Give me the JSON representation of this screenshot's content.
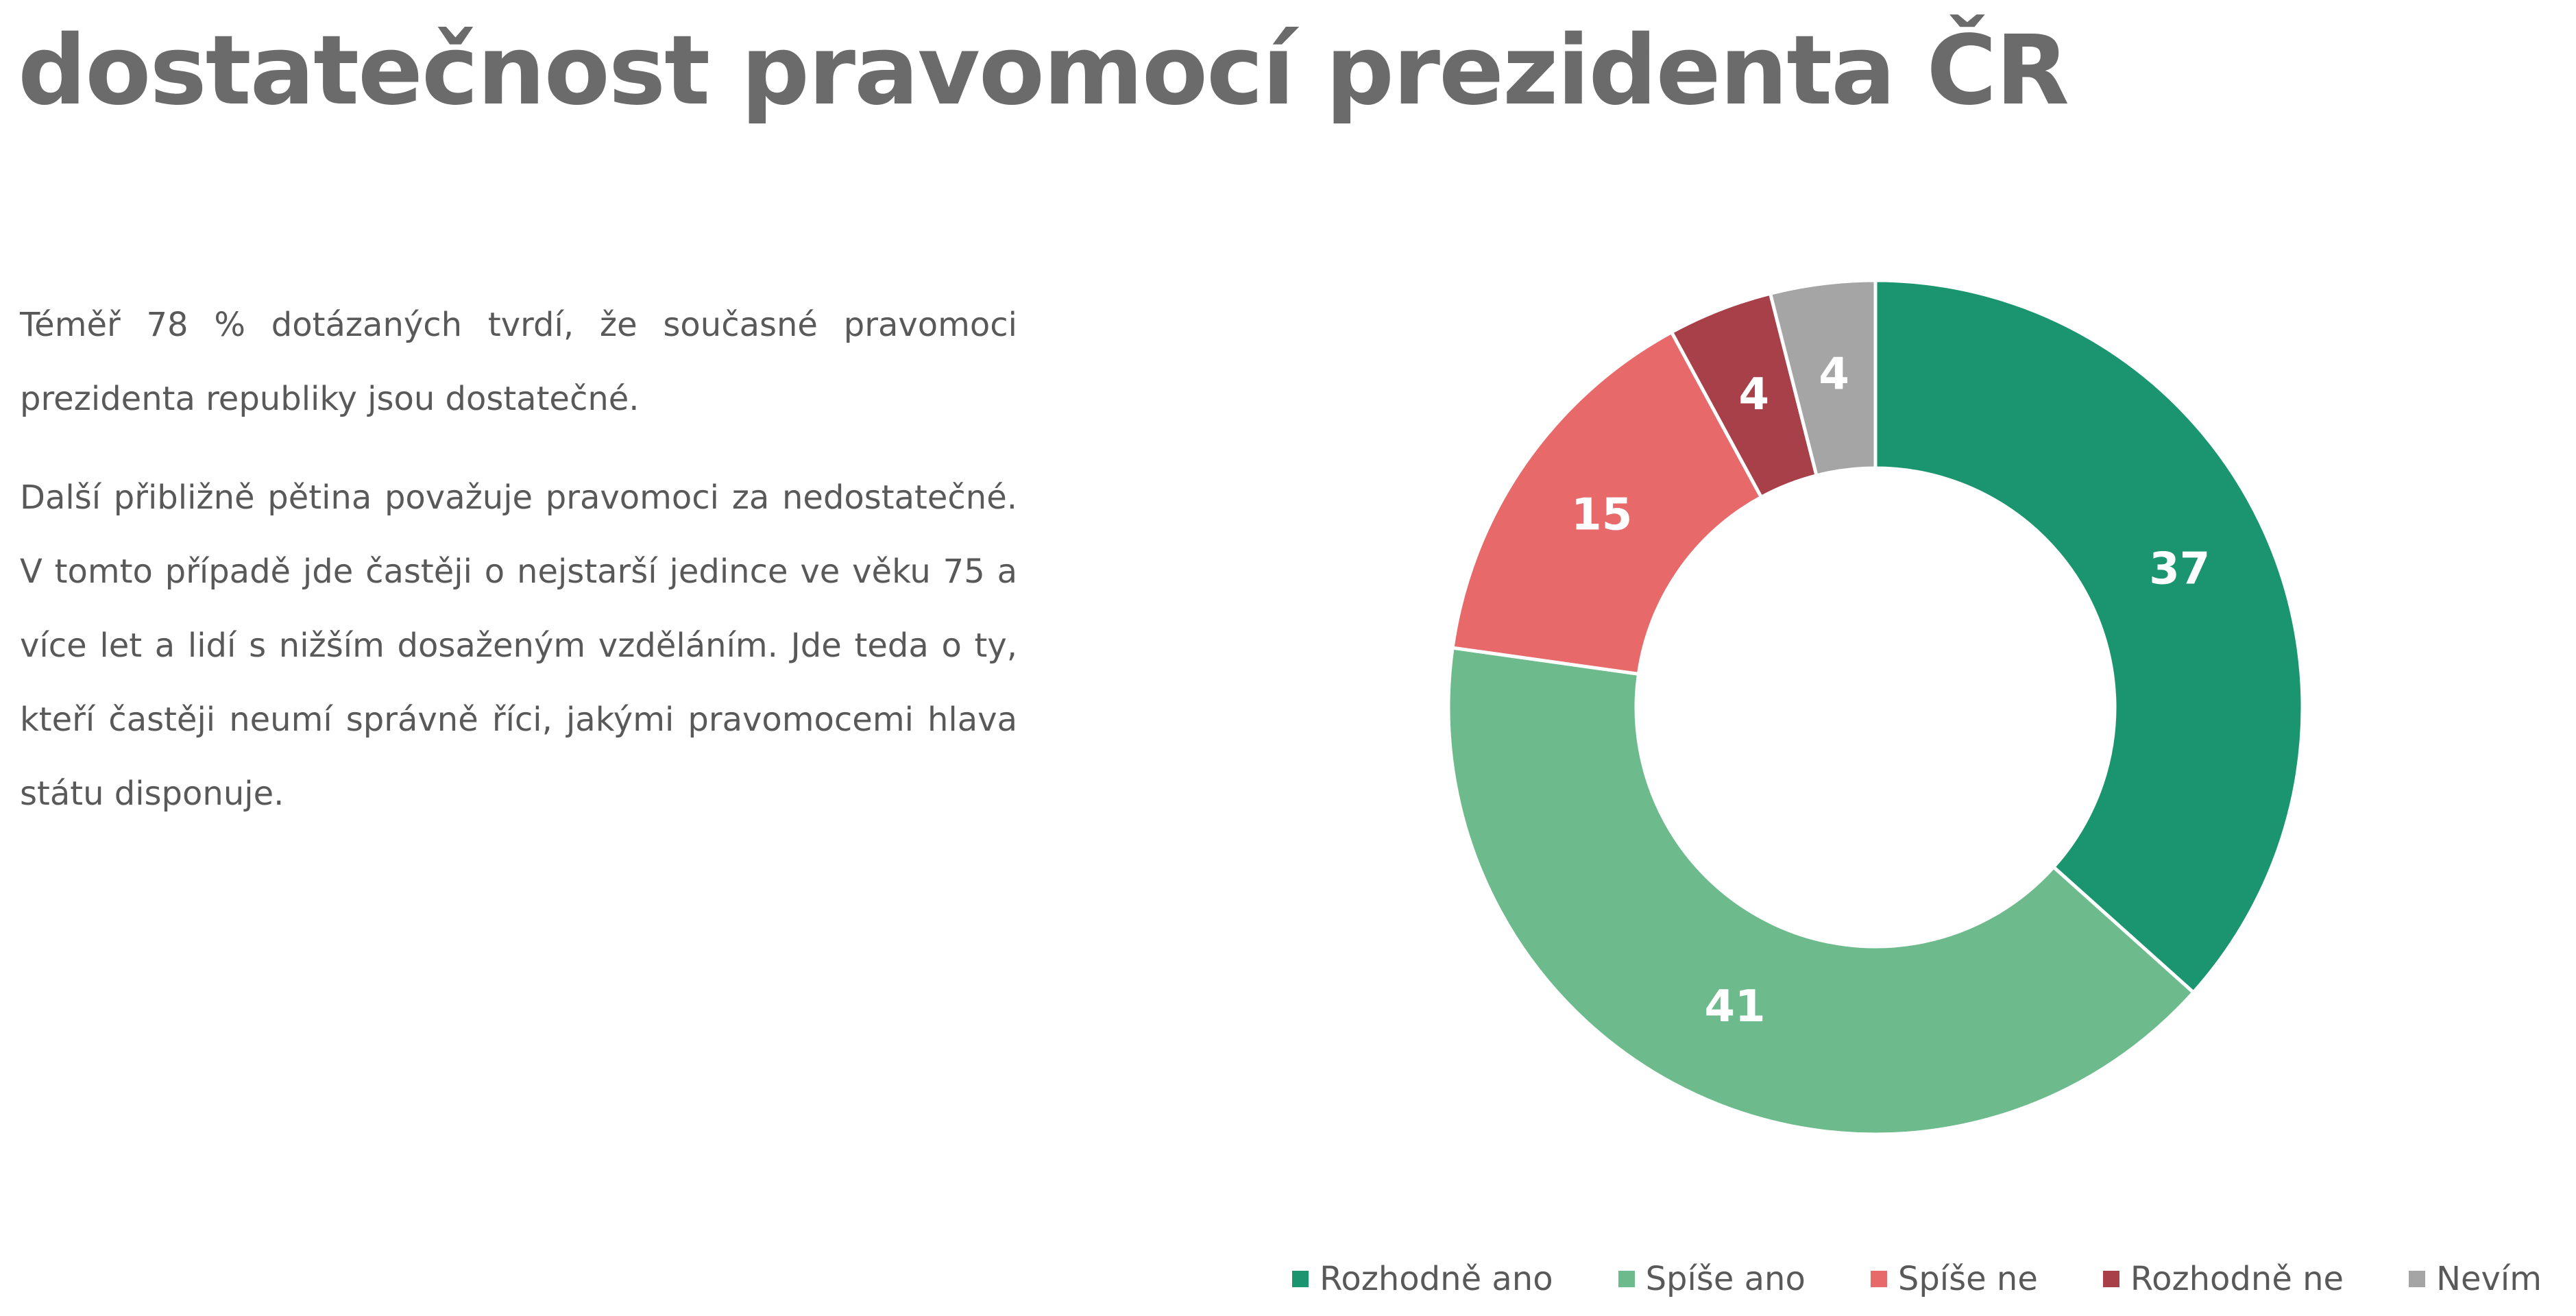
{
  "chart_data": {
    "type": "donut",
    "title": "dostatečnost pravomocí prezidenta ČR",
    "paragraphs": [
      "Téměř 78 % dotázaných tvrdí, že současné pravomoci prezidenta republiky jsou dostatečné.",
      "Další přibližně pětina považuje pravomoci za nedostatečné. V tomto případě jde častěji o nejstarší jedince ve věku 75 a více let a lidí s nižším dosaženým vzděláním. Jde teda o ty, kteří častěji neumí správně říci, jakými pravomocemi hlava státu disponuje."
    ],
    "categories": [
      "Rozhodně ano",
      "Spíše ano",
      "Spíše ne",
      "Rozhodně ne",
      "Nevím"
    ],
    "values": [
      37,
      41,
      15,
      4,
      4
    ],
    "colors": [
      "#1a9570",
      "#6dbb8c",
      "#e8696a",
      "#a8404a",
      "#a5a5a5"
    ],
    "legend": "bottom-right"
  }
}
